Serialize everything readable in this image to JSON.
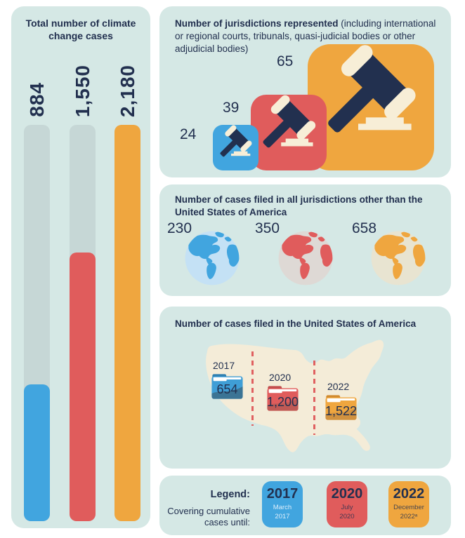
{
  "colors": {
    "mint": "#d5e8e5",
    "navy": "#22304f",
    "blue": "#41a5df",
    "red": "#e05c5c",
    "orange": "#efa63f",
    "track": "#c6d7d6",
    "cream": "#f7eed7",
    "map": "#f4ecd8",
    "dash": "#e06060",
    "ocean_blue": "#c4e1f5",
    "ocean_red": "#ded9d5",
    "ocean_orange": "#e8e4d1",
    "folder_blue_main": "#3f9ed6",
    "folder_blue_dark": "#2f7fb0",
    "folder_blue_swoosh": "#3b7495",
    "folder_red_main": "#e05c5c",
    "folder_red_dark": "#c14e4e",
    "folder_red_swoosh": "#c05a55",
    "folder_orange_main": "#efa63f",
    "folder_orange_dark": "#d08a2e",
    "folder_orange_swoosh": "#d19240"
  },
  "left_panel": {
    "title": "Total number of climate change cases",
    "bars": [
      {
        "label": "884",
        "fill_fraction": 0.345
      },
      {
        "label": "1,550",
        "fill_fraction": 0.678
      },
      {
        "label": "2,180",
        "fill_fraction": 1.0
      }
    ]
  },
  "jurisdictions_panel": {
    "title_bold": "Number of jurisdictions represented",
    "title_rest": " (including international or regional courts, tribunals, quasi-judicial bodies or other adjudicial bodies)",
    "items": [
      {
        "value": "24"
      },
      {
        "value": "39"
      },
      {
        "value": "65"
      }
    ]
  },
  "other_panel": {
    "title": "Number of cases filed in all jurisdictions other than the United States of America",
    "items": [
      {
        "value": "230"
      },
      {
        "value": "350"
      },
      {
        "value": "658"
      }
    ]
  },
  "usa_panel": {
    "title": "Number of cases filed in the United States of America",
    "items": [
      {
        "year": "2017",
        "value": "654"
      },
      {
        "year": "2020",
        "value": "1,200"
      },
      {
        "year": "2022",
        "value": "1,522"
      }
    ]
  },
  "legend_panel": {
    "title": "Legend:",
    "subtitle_line1": "Covering cumulative",
    "subtitle_line2": "cases until:",
    "chips": [
      {
        "year": "2017",
        "sub_line1": "March",
        "sub_line2": "2017"
      },
      {
        "year": "2020",
        "sub_line1": "July",
        "sub_line2": "2020"
      },
      {
        "year": "2022",
        "sub_line1": "December",
        "sub_line2": "2022ᵃ"
      }
    ]
  },
  "chart_data": [
    {
      "type": "bar",
      "title": "Total number of climate change cases",
      "categories": [
        "2017",
        "2020",
        "2022"
      ],
      "values": [
        884,
        1550,
        2180
      ],
      "ylim": [
        0,
        2180
      ],
      "colors": [
        "#41a5df",
        "#e05c5c",
        "#efa63f"
      ]
    },
    {
      "type": "bar",
      "title": "Number of jurisdictions represented (including international or regional courts, tribunals, quasi-judicial bodies or other adjudicial bodies)",
      "categories": [
        "2017",
        "2020",
        "2022"
      ],
      "values": [
        24,
        39,
        65
      ],
      "icon": "gavel"
    },
    {
      "type": "bar",
      "title": "Number of cases filed in all jurisdictions other than the United States of America",
      "categories": [
        "2017",
        "2020",
        "2022"
      ],
      "values": [
        230,
        350,
        658
      ],
      "icon": "globe"
    },
    {
      "type": "bar",
      "title": "Number of cases filed in the United States of America",
      "categories": [
        "2017",
        "2020",
        "2022"
      ],
      "values": [
        654,
        1200,
        1522
      ],
      "icon": "folder"
    }
  ]
}
